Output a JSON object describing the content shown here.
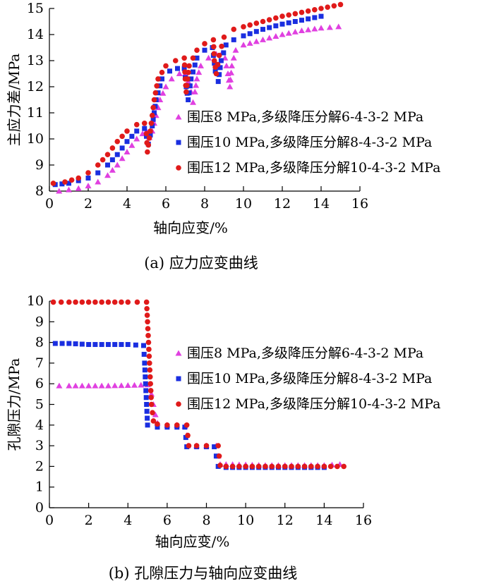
{
  "chart_data": [
    {
      "type": "scatter",
      "caption": "(a) 应力应变曲线",
      "xlabel": "轴向应变/%",
      "ylabel": "主应力差/MPa",
      "xlim": [
        0,
        16
      ],
      "ylim": [
        8,
        15
      ],
      "xticks": [
        0,
        2,
        4,
        6,
        8,
        10,
        12,
        14,
        16
      ],
      "yticks": [
        8,
        9,
        10,
        11,
        12,
        13,
        14,
        15
      ],
      "legend_position": "right-center",
      "series": [
        {
          "name": "围压8 MPa,多级降压分解6-4-3-2 MPa",
          "color": "#e040e0",
          "marker": "triangle",
          "points": [
            [
              0.5,
              8.0
            ],
            [
              1.0,
              8.05
            ],
            [
              1.5,
              8.1
            ],
            [
              2.0,
              8.2
            ],
            [
              2.5,
              8.35
            ],
            [
              3.0,
              8.6
            ],
            [
              3.5,
              9.0
            ],
            [
              4.0,
              9.5
            ],
            [
              4.5,
              10.0
            ],
            [
              4.8,
              10.2
            ],
            [
              5.0,
              10.3
            ],
            [
              5.15,
              10.05
            ],
            [
              5.3,
              10.3
            ],
            [
              5.5,
              10.9
            ],
            [
              5.7,
              11.5
            ],
            [
              6.0,
              12.0
            ],
            [
              6.3,
              12.3
            ],
            [
              6.7,
              12.5
            ],
            [
              7.0,
              12.5
            ],
            [
              7.15,
              12.2
            ],
            [
              7.3,
              11.8
            ],
            [
              7.4,
              11.4
            ],
            [
              7.5,
              11.8
            ],
            [
              7.6,
              12.3
            ],
            [
              7.8,
              12.8
            ],
            [
              8.2,
              13.1
            ],
            [
              8.6,
              13.25
            ],
            [
              8.9,
              13.3
            ],
            [
              9.05,
              13.1
            ],
            [
              9.2,
              12.5
            ],
            [
              9.3,
              12.0
            ],
            [
              9.4,
              12.8
            ],
            [
              9.6,
              13.4
            ],
            [
              10.0,
              13.6
            ],
            [
              11.0,
              13.8
            ],
            [
              12.0,
              14.0
            ],
            [
              13.0,
              14.15
            ],
            [
              14.0,
              14.25
            ],
            [
              14.9,
              14.3
            ]
          ]
        },
        {
          "name": "围压10 MPa,多级降压分解8-4-3-2 MPa",
          "color": "#1a2ee0",
          "marker": "square",
          "points": [
            [
              0.3,
              8.25
            ],
            [
              1.0,
              8.3
            ],
            [
              1.5,
              8.4
            ],
            [
              2.0,
              8.5
            ],
            [
              2.5,
              8.7
            ],
            [
              3.0,
              9.0
            ],
            [
              3.5,
              9.4
            ],
            [
              4.0,
              9.9
            ],
            [
              4.5,
              10.3
            ],
            [
              4.9,
              10.4
            ],
            [
              5.1,
              9.8
            ],
            [
              5.3,
              10.5
            ],
            [
              5.5,
              11.5
            ],
            [
              5.8,
              12.3
            ],
            [
              6.2,
              12.6
            ],
            [
              6.6,
              12.7
            ],
            [
              6.95,
              12.7
            ],
            [
              7.05,
              12.0
            ],
            [
              7.15,
              11.5
            ],
            [
              7.3,
              12.3
            ],
            [
              7.6,
              13.1
            ],
            [
              8.0,
              13.4
            ],
            [
              8.4,
              13.5
            ],
            [
              8.55,
              12.6
            ],
            [
              8.7,
              12.2
            ],
            [
              8.85,
              13.0
            ],
            [
              9.1,
              13.6
            ],
            [
              9.5,
              13.8
            ],
            [
              10.0,
              13.95
            ],
            [
              11.0,
              14.2
            ],
            [
              12.0,
              14.4
            ],
            [
              13.0,
              14.55
            ],
            [
              14.0,
              14.7
            ]
          ]
        },
        {
          "name": "围压12 MPa,多级降压分解10-4-3-2 MPa",
          "color": "#e01a1a",
          "marker": "circle",
          "points": [
            [
              0.2,
              8.3
            ],
            [
              0.8,
              8.35
            ],
            [
              1.5,
              8.5
            ],
            [
              2.0,
              8.7
            ],
            [
              2.5,
              9.0
            ],
            [
              3.0,
              9.4
            ],
            [
              3.5,
              9.9
            ],
            [
              4.0,
              10.3
            ],
            [
              4.5,
              10.55
            ],
            [
              4.9,
              10.6
            ],
            [
              5.0,
              10.2
            ],
            [
              5.05,
              9.5
            ],
            [
              5.2,
              10.3
            ],
            [
              5.4,
              11.5
            ],
            [
              5.6,
              12.3
            ],
            [
              6.0,
              12.8
            ],
            [
              6.5,
              13.0
            ],
            [
              6.95,
              13.1
            ],
            [
              7.0,
              12.3
            ],
            [
              7.05,
              11.8
            ],
            [
              7.2,
              12.8
            ],
            [
              7.6,
              13.4
            ],
            [
              8.0,
              13.65
            ],
            [
              8.45,
              13.8
            ],
            [
              8.5,
              13.0
            ],
            [
              8.6,
              12.5
            ],
            [
              8.75,
              13.2
            ],
            [
              9.0,
              13.9
            ],
            [
              9.5,
              14.2
            ],
            [
              10.0,
              14.3
            ],
            [
              11.0,
              14.5
            ],
            [
              12.0,
              14.7
            ],
            [
              13.0,
              14.85
            ],
            [
              14.0,
              15.0
            ],
            [
              15.0,
              15.15
            ]
          ]
        }
      ]
    },
    {
      "type": "scatter",
      "caption": "(b) 孔隙压力与轴向应变曲线",
      "xlabel": "轴向应变/%",
      "ylabel": "孔隙压力/MPa",
      "xlim": [
        0,
        16
      ],
      "ylim": [
        0,
        10
      ],
      "xticks": [
        0,
        2,
        4,
        6,
        8,
        10,
        12,
        14,
        16
      ],
      "yticks": [
        0,
        1,
        2,
        3,
        4,
        5,
        6,
        7,
        8,
        9,
        10
      ],
      "legend_position": "right-center",
      "series": [
        {
          "name": "围压8 MPa,多级降压分解6-4-3-2 MPa",
          "color": "#e040e0",
          "marker": "triangle",
          "points": [
            [
              0.5,
              5.9
            ],
            [
              1.0,
              5.9
            ],
            [
              2.0,
              5.9
            ],
            [
              3.0,
              5.9
            ],
            [
              4.0,
              5.92
            ],
            [
              5.0,
              5.95
            ],
            [
              5.2,
              5.5
            ],
            [
              5.3,
              5.0
            ],
            [
              5.4,
              4.5
            ],
            [
              5.5,
              4.1
            ],
            [
              6.0,
              4.0
            ],
            [
              6.5,
              4.0
            ],
            [
              6.9,
              3.95
            ],
            [
              7.0,
              3.5
            ],
            [
              7.05,
              3.0
            ],
            [
              7.5,
              3.0
            ],
            [
              8.0,
              3.0
            ],
            [
              8.5,
              3.0
            ],
            [
              8.6,
              2.5
            ],
            [
              8.7,
              2.1
            ],
            [
              9.0,
              2.1
            ],
            [
              10.0,
              2.08
            ],
            [
              11.0,
              2.05
            ],
            [
              12.0,
              2.05
            ],
            [
              13.0,
              2.05
            ],
            [
              14.0,
              2.05
            ],
            [
              14.8,
              2.1
            ]
          ]
        },
        {
          "name": "围压10 MPa,多级降压分解8-4-3-2 MPa",
          "color": "#1a2ee0",
          "marker": "square",
          "points": [
            [
              0.3,
              7.95
            ],
            [
              1.0,
              7.95
            ],
            [
              2.0,
              7.9
            ],
            [
              3.0,
              7.9
            ],
            [
              4.0,
              7.9
            ],
            [
              4.8,
              7.85
            ],
            [
              4.85,
              7.0
            ],
            [
              4.9,
              6.0
            ],
            [
              4.95,
              5.0
            ],
            [
              5.0,
              4.0
            ],
            [
              5.5,
              3.9
            ],
            [
              6.0,
              3.9
            ],
            [
              6.5,
              3.9
            ],
            [
              6.9,
              3.9
            ],
            [
              6.95,
              3.4
            ],
            [
              7.0,
              2.95
            ],
            [
              7.5,
              2.95
            ],
            [
              8.0,
              2.95
            ],
            [
              8.4,
              2.95
            ],
            [
              8.5,
              2.5
            ],
            [
              8.6,
              2.0
            ],
            [
              9.0,
              1.95
            ],
            [
              10.0,
              1.95
            ],
            [
              11.0,
              1.95
            ],
            [
              12.0,
              1.95
            ],
            [
              13.0,
              1.95
            ],
            [
              14.0,
              1.95
            ]
          ]
        },
        {
          "name": "围压12 MPa,多级降压分解10-4-3-2 MPa",
          "color": "#e01a1a",
          "marker": "circle",
          "points": [
            [
              0.2,
              9.95
            ],
            [
              1.0,
              9.95
            ],
            [
              2.0,
              9.95
            ],
            [
              3.0,
              9.95
            ],
            [
              4.0,
              9.95
            ],
            [
              4.95,
              9.95
            ],
            [
              5.0,
              9.0
            ],
            [
              5.05,
              8.0
            ],
            [
              5.1,
              7.0
            ],
            [
              5.15,
              6.0
            ],
            [
              5.2,
              5.0
            ],
            [
              5.3,
              4.2
            ],
            [
              5.5,
              4.05
            ],
            [
              6.0,
              4.0
            ],
            [
              6.5,
              4.0
            ],
            [
              7.0,
              4.0
            ],
            [
              7.05,
              3.5
            ],
            [
              7.1,
              3.0
            ],
            [
              7.5,
              3.0
            ],
            [
              8.0,
              3.0
            ],
            [
              8.6,
              3.0
            ],
            [
              8.65,
              2.5
            ],
            [
              8.7,
              2.05
            ],
            [
              9.0,
              2.0
            ],
            [
              10.0,
              2.0
            ],
            [
              11.0,
              2.0
            ],
            [
              12.0,
              2.0
            ],
            [
              13.0,
              2.0
            ],
            [
              14.0,
              2.0
            ],
            [
              15.0,
              2.0
            ]
          ]
        }
      ]
    }
  ]
}
